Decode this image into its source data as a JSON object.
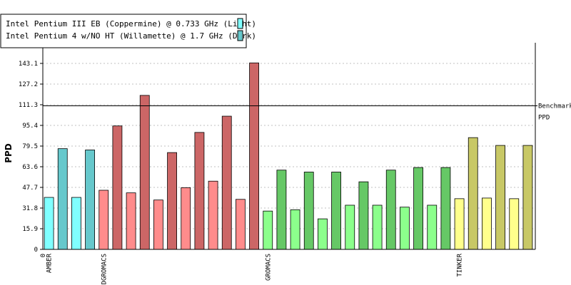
{
  "chart_data": {
    "type": "bar",
    "ylabel": "PPD",
    "ylim": [
      0,
      159
    ],
    "yticks": [
      "0",
      "15.9",
      "31.8",
      "47.7",
      "63.6",
      "79.5",
      "95.4",
      "111.3",
      "127.2",
      "143.1"
    ],
    "grid": true,
    "legend_position": "top-left",
    "legend": [
      {
        "label": "Intel Pentium III EB (Coppermine) @ 0.733 GHz (Light)",
        "color": "#80ffff"
      },
      {
        "label": "Intel Pentium 4 w/NO HT (Willamette) @ 1.7 GHz (Dark)",
        "color": "#66c8cc"
      }
    ],
    "benchmark": {
      "value": 110.5,
      "label_line1": "Benchmark",
      "label_line2": "PPD"
    },
    "x_labels": [
      {
        "text": "0",
        "at_bar": -1
      },
      {
        "text": "AMBER",
        "at_bar": 0
      },
      {
        "text": "DGROMACS",
        "at_bar": 4
      },
      {
        "text": "GROMACS",
        "at_bar": 16
      },
      {
        "text": "TINKER",
        "at_bar": 30
      }
    ],
    "bars": [
      {
        "value": 40,
        "color": "#80ffff"
      },
      {
        "value": 77.5,
        "color": "#66c8cc"
      },
      {
        "value": 40,
        "color": "#80ffff"
      },
      {
        "value": 76.5,
        "color": "#66c8cc"
      },
      {
        "value": 45.5,
        "color": "#ff8c8c"
      },
      {
        "value": 95,
        "color": "#cc6666"
      },
      {
        "value": 43.5,
        "color": "#ff8c8c"
      },
      {
        "value": 118.5,
        "color": "#cc6666"
      },
      {
        "value": 38,
        "color": "#ff8c8c"
      },
      {
        "value": 74.5,
        "color": "#cc6666"
      },
      {
        "value": 47.5,
        "color": "#ff8c8c"
      },
      {
        "value": 90,
        "color": "#cc6666"
      },
      {
        "value": 52.5,
        "color": "#ff8c8c"
      },
      {
        "value": 102.5,
        "color": "#cc6666"
      },
      {
        "value": 38.5,
        "color": "#ff8c8c"
      },
      {
        "value": 143.5,
        "color": "#cc6666"
      },
      {
        "value": 29.5,
        "color": "#8cff8c"
      },
      {
        "value": 61,
        "color": "#66c866"
      },
      {
        "value": 30.5,
        "color": "#8cff8c"
      },
      {
        "value": 59.5,
        "color": "#66c866"
      },
      {
        "value": 23.5,
        "color": "#8cff8c"
      },
      {
        "value": 59.5,
        "color": "#66c866"
      },
      {
        "value": 34,
        "color": "#8cff8c"
      },
      {
        "value": 52,
        "color": "#66c866"
      },
      {
        "value": 34,
        "color": "#8cff8c"
      },
      {
        "value": 61,
        "color": "#66c866"
      },
      {
        "value": 32.5,
        "color": "#8cff8c"
      },
      {
        "value": 63,
        "color": "#66c866"
      },
      {
        "value": 34,
        "color": "#8cff8c"
      },
      {
        "value": 63,
        "color": "#66c866"
      },
      {
        "value": 39,
        "color": "#ffff8c"
      },
      {
        "value": 86,
        "color": "#c8c866"
      },
      {
        "value": 39.5,
        "color": "#ffff8c"
      },
      {
        "value": 80,
        "color": "#c8c866"
      },
      {
        "value": 39,
        "color": "#ffff8c"
      },
      {
        "value": 80,
        "color": "#c8c866"
      }
    ]
  }
}
